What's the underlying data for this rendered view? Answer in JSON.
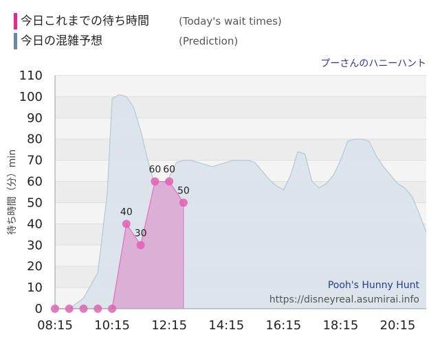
{
  "legend": {
    "items": [
      {
        "label": "今日これまでの待ち時間",
        "note": "(Today's wait times)",
        "color": "#e8288e"
      },
      {
        "label": "今日の混雑予想",
        "note": "(Prediction)",
        "color": "#6a88a8"
      }
    ]
  },
  "attraction": {
    "title_ja": "プーさんのハニーハント",
    "title_en": "Pooh's Hunny Hunt",
    "url": "https://disneyreal.asumirai.info"
  },
  "colors": {
    "today_line": "#e070b8",
    "today_fill": "#dca6d2",
    "today_marker": "#e35fb5",
    "prediction_fill": "#d9e3ea",
    "prediction_line": "#b7c7d3",
    "title_ja": "#2b3a8c",
    "title_en": "#2b3a8c",
    "url": "#555555"
  },
  "chart_data": {
    "type": "area",
    "ylabel": "待ち時間（分）min",
    "xlabel": "",
    "ylim": [
      0,
      110
    ],
    "xlim": [
      "08:15",
      "21:15"
    ],
    "yticks": [
      0,
      10,
      20,
      30,
      40,
      50,
      60,
      70,
      80,
      90,
      100,
      110
    ],
    "xticks": [
      "08:15",
      "10:15",
      "12:15",
      "14:15",
      "16:15",
      "18:15",
      "20:15"
    ],
    "grid": true,
    "series": [
      {
        "type": "area",
        "x": [
          "08:15",
          "08:45",
          "09:15",
          "09:45",
          "10:05",
          "10:15",
          "10:30",
          "10:45",
          "11:00",
          "11:15",
          "11:30",
          "11:45",
          "12:00",
          "12:15",
          "12:30",
          "12:45",
          "13:00",
          "13:15",
          "13:30",
          "13:45",
          "14:00",
          "14:15",
          "14:30",
          "14:45",
          "15:00",
          "15:15",
          "15:30",
          "15:45",
          "16:00",
          "16:15",
          "16:30",
          "16:45",
          "17:00",
          "17:15",
          "17:30",
          "17:45",
          "18:00",
          "18:15",
          "18:30",
          "18:45",
          "19:00",
          "19:15",
          "19:30",
          "19:45",
          "20:00",
          "20:15",
          "20:30",
          "20:45",
          "21:00",
          "21:15"
        ],
        "values": [
          0,
          0,
          5,
          17,
          55,
          99,
          101,
          100,
          95,
          84,
          70,
          58,
          58,
          62,
          69,
          70,
          70,
          69,
          68,
          67,
          68,
          69,
          70,
          70,
          70,
          69,
          65,
          61,
          58,
          56,
          63,
          74,
          73,
          60,
          57,
          59,
          63,
          70,
          79,
          80,
          80,
          79,
          72,
          67,
          63,
          59,
          57,
          53,
          45,
          36
        ]
      },
      {
        "type": "line",
        "x": [
          "08:15",
          "08:45",
          "09:15",
          "09:45",
          "10:15",
          "10:45",
          "11:15",
          "11:45",
          "12:15",
          "12:45"
        ],
        "values": [
          0,
          0,
          0,
          0,
          0,
          40,
          30,
          60,
          60,
          50
        ],
        "labels": [
          "",
          "",
          "",
          "",
          "",
          "40",
          "30",
          "60",
          "60",
          "50"
        ]
      }
    ]
  }
}
